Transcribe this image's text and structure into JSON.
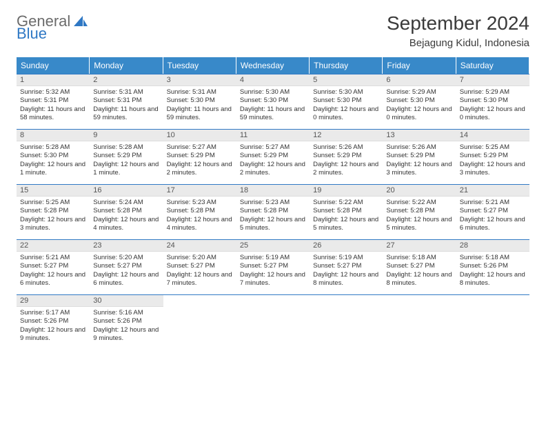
{
  "brand": {
    "part1": "General",
    "part2": "Blue"
  },
  "title": "September 2024",
  "location": "Bejagung Kidul, Indonesia",
  "colors": {
    "header_bg": "#3889c9",
    "rule": "#2f78c4",
    "daynum_bg": "#eaeaea",
    "text": "#333333"
  },
  "weekdays": [
    "Sunday",
    "Monday",
    "Tuesday",
    "Wednesday",
    "Thursday",
    "Friday",
    "Saturday"
  ],
  "days": [
    {
      "n": "1",
      "sr": "5:32 AM",
      "ss": "5:31 PM",
      "dl": "11 hours and 58 minutes."
    },
    {
      "n": "2",
      "sr": "5:31 AM",
      "ss": "5:31 PM",
      "dl": "11 hours and 59 minutes."
    },
    {
      "n": "3",
      "sr": "5:31 AM",
      "ss": "5:30 PM",
      "dl": "11 hours and 59 minutes."
    },
    {
      "n": "4",
      "sr": "5:30 AM",
      "ss": "5:30 PM",
      "dl": "11 hours and 59 minutes."
    },
    {
      "n": "5",
      "sr": "5:30 AM",
      "ss": "5:30 PM",
      "dl": "12 hours and 0 minutes."
    },
    {
      "n": "6",
      "sr": "5:29 AM",
      "ss": "5:30 PM",
      "dl": "12 hours and 0 minutes."
    },
    {
      "n": "7",
      "sr": "5:29 AM",
      "ss": "5:30 PM",
      "dl": "12 hours and 0 minutes."
    },
    {
      "n": "8",
      "sr": "5:28 AM",
      "ss": "5:30 PM",
      "dl": "12 hours and 1 minute."
    },
    {
      "n": "9",
      "sr": "5:28 AM",
      "ss": "5:29 PM",
      "dl": "12 hours and 1 minute."
    },
    {
      "n": "10",
      "sr": "5:27 AM",
      "ss": "5:29 PM",
      "dl": "12 hours and 2 minutes."
    },
    {
      "n": "11",
      "sr": "5:27 AM",
      "ss": "5:29 PM",
      "dl": "12 hours and 2 minutes."
    },
    {
      "n": "12",
      "sr": "5:26 AM",
      "ss": "5:29 PM",
      "dl": "12 hours and 2 minutes."
    },
    {
      "n": "13",
      "sr": "5:26 AM",
      "ss": "5:29 PM",
      "dl": "12 hours and 3 minutes."
    },
    {
      "n": "14",
      "sr": "5:25 AM",
      "ss": "5:29 PM",
      "dl": "12 hours and 3 minutes."
    },
    {
      "n": "15",
      "sr": "5:25 AM",
      "ss": "5:28 PM",
      "dl": "12 hours and 3 minutes."
    },
    {
      "n": "16",
      "sr": "5:24 AM",
      "ss": "5:28 PM",
      "dl": "12 hours and 4 minutes."
    },
    {
      "n": "17",
      "sr": "5:23 AM",
      "ss": "5:28 PM",
      "dl": "12 hours and 4 minutes."
    },
    {
      "n": "18",
      "sr": "5:23 AM",
      "ss": "5:28 PM",
      "dl": "12 hours and 5 minutes."
    },
    {
      "n": "19",
      "sr": "5:22 AM",
      "ss": "5:28 PM",
      "dl": "12 hours and 5 minutes."
    },
    {
      "n": "20",
      "sr": "5:22 AM",
      "ss": "5:28 PM",
      "dl": "12 hours and 5 minutes."
    },
    {
      "n": "21",
      "sr": "5:21 AM",
      "ss": "5:27 PM",
      "dl": "12 hours and 6 minutes."
    },
    {
      "n": "22",
      "sr": "5:21 AM",
      "ss": "5:27 PM",
      "dl": "12 hours and 6 minutes."
    },
    {
      "n": "23",
      "sr": "5:20 AM",
      "ss": "5:27 PM",
      "dl": "12 hours and 6 minutes."
    },
    {
      "n": "24",
      "sr": "5:20 AM",
      "ss": "5:27 PM",
      "dl": "12 hours and 7 minutes."
    },
    {
      "n": "25",
      "sr": "5:19 AM",
      "ss": "5:27 PM",
      "dl": "12 hours and 7 minutes."
    },
    {
      "n": "26",
      "sr": "5:19 AM",
      "ss": "5:27 PM",
      "dl": "12 hours and 8 minutes."
    },
    {
      "n": "27",
      "sr": "5:18 AM",
      "ss": "5:27 PM",
      "dl": "12 hours and 8 minutes."
    },
    {
      "n": "28",
      "sr": "5:18 AM",
      "ss": "5:26 PM",
      "dl": "12 hours and 8 minutes."
    },
    {
      "n": "29",
      "sr": "5:17 AM",
      "ss": "5:26 PM",
      "dl": "12 hours and 9 minutes."
    },
    {
      "n": "30",
      "sr": "5:16 AM",
      "ss": "5:26 PM",
      "dl": "12 hours and 9 minutes."
    }
  ],
  "labels": {
    "sunrise": "Sunrise: ",
    "sunset": "Sunset: ",
    "daylight": "Daylight: "
  },
  "layout": {
    "start_offset": 0,
    "total_cells": 35
  }
}
